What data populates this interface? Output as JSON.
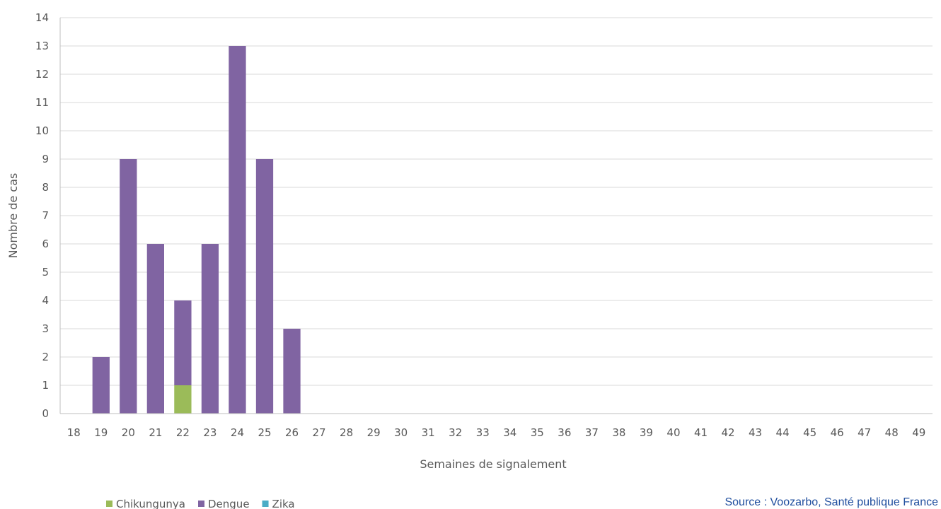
{
  "chart_data": {
    "type": "bar",
    "stacked": true,
    "categories": [
      "18",
      "19",
      "20",
      "21",
      "22",
      "23",
      "24",
      "25",
      "26",
      "27",
      "28",
      "29",
      "30",
      "31",
      "32",
      "33",
      "34",
      "35",
      "36",
      "37",
      "38",
      "39",
      "40",
      "41",
      "42",
      "43",
      "44",
      "45",
      "46",
      "47",
      "48",
      "49"
    ],
    "series": [
      {
        "name": "Chikungunya",
        "color": "#9bbb59",
        "values": [
          0,
          0,
          0,
          0,
          1,
          0,
          0,
          0,
          0,
          0,
          0,
          0,
          0,
          0,
          0,
          0,
          0,
          0,
          0,
          0,
          0,
          0,
          0,
          0,
          0,
          0,
          0,
          0,
          0,
          0,
          0,
          0
        ]
      },
      {
        "name": "Dengue",
        "color": "#8064a2",
        "values": [
          0,
          2,
          9,
          6,
          3,
          6,
          13,
          9,
          3,
          0,
          0,
          0,
          0,
          0,
          0,
          0,
          0,
          0,
          0,
          0,
          0,
          0,
          0,
          0,
          0,
          0,
          0,
          0,
          0,
          0,
          0,
          0
        ]
      },
      {
        "name": "Zika",
        "color": "#4bacc6",
        "values": [
          0,
          0,
          0,
          0,
          0,
          0,
          0,
          0,
          0,
          0,
          0,
          0,
          0,
          0,
          0,
          0,
          0,
          0,
          0,
          0,
          0,
          0,
          0,
          0,
          0,
          0,
          0,
          0,
          0,
          0,
          0,
          0
        ]
      }
    ],
    "xlabel": "Semaines de signalement",
    "ylabel": "Nombre de cas",
    "ylim": [
      0,
      14
    ],
    "yticks": [
      "0",
      "1",
      "2",
      "3",
      "4",
      "5",
      "6",
      "7",
      "8",
      "9",
      "10",
      "11",
      "12",
      "13",
      "14"
    ],
    "grid": true,
    "legend": "bottom-left"
  },
  "source": "Source : Voozarbo, Santé publique France"
}
